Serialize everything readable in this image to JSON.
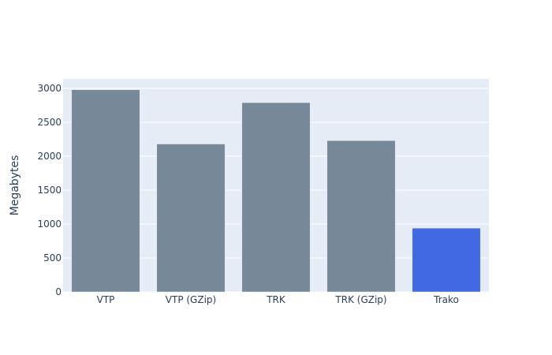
{
  "chart_data": {
    "type": "bar",
    "categories": [
      "VTP",
      "VTP (GZip)",
      "TRK",
      "TRK (GZip)",
      "Trako"
    ],
    "values": [
      2980,
      2180,
      2790,
      2230,
      940
    ],
    "bar_colors": [
      "#778899",
      "#778899",
      "#778899",
      "#778899",
      "#4169e1"
    ],
    "title": "",
    "xlabel": "",
    "ylabel": "Megabytes",
    "ylim": [
      0,
      3140
    ],
    "yticks": [
      0,
      500,
      1000,
      1500,
      2000,
      2500,
      3000
    ],
    "grid": true,
    "legend": "none"
  },
  "colors": {
    "plot_background": "#e5ecf6",
    "gridline": "#ffffff",
    "text": "#2a3f5f"
  }
}
